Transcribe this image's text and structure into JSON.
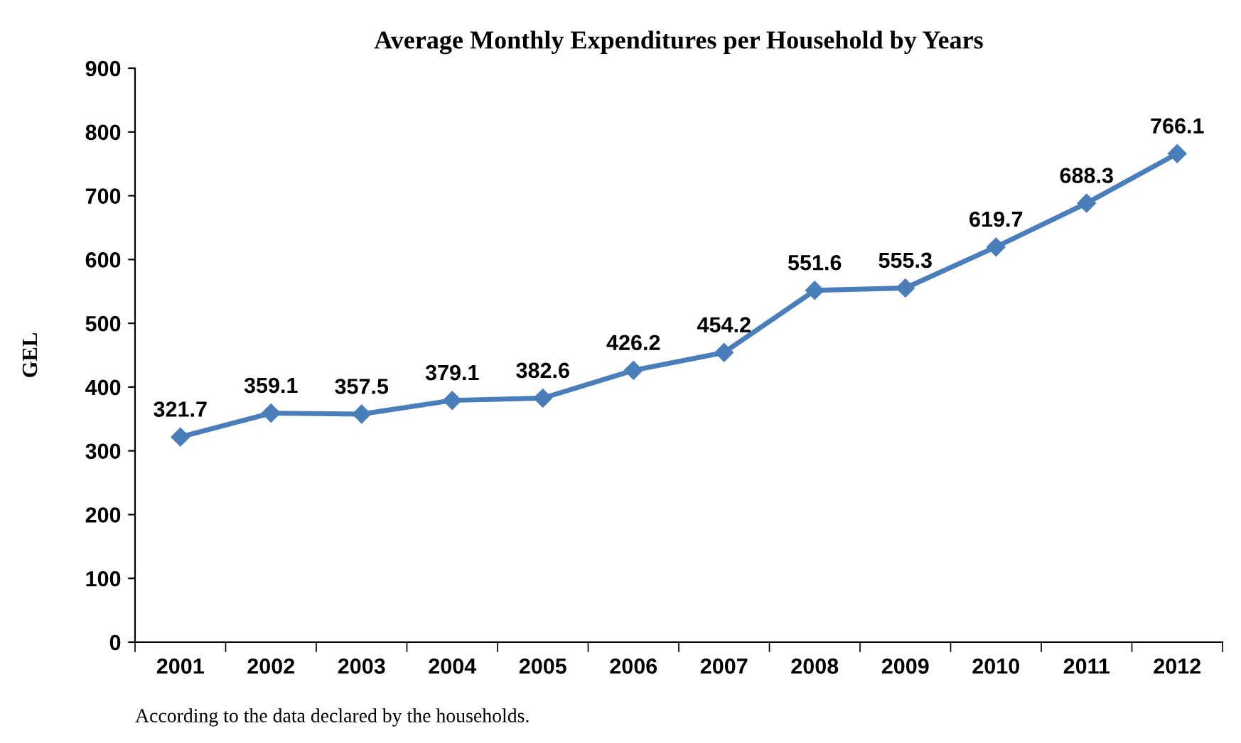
{
  "chart_data": {
    "type": "line",
    "title": "Average Monthly Expenditures per Household by Years",
    "ylabel": "GEL",
    "categories": [
      "2001",
      "2002",
      "2003",
      "2004",
      "2005",
      "2006",
      "2007",
      "2008",
      "2009",
      "2010",
      "2011",
      "2012"
    ],
    "series": [
      {
        "color": "#4a7ebb",
        "values": [
          321.7,
          359.1,
          357.5,
          379.1,
          382.6,
          426.2,
          454.2,
          551.6,
          555.3,
          619.7,
          688.3,
          766.1
        ]
      }
    ],
    "ylim": [
      0,
      900
    ],
    "yticks": [
      0,
      100,
      200,
      300,
      400,
      500,
      600,
      700,
      800,
      900
    ],
    "grid": false,
    "legend": false,
    "marker": "diamond",
    "line_style": "solid",
    "data_labels": true,
    "annotations": [
      "According to the data declared by the households."
    ]
  }
}
